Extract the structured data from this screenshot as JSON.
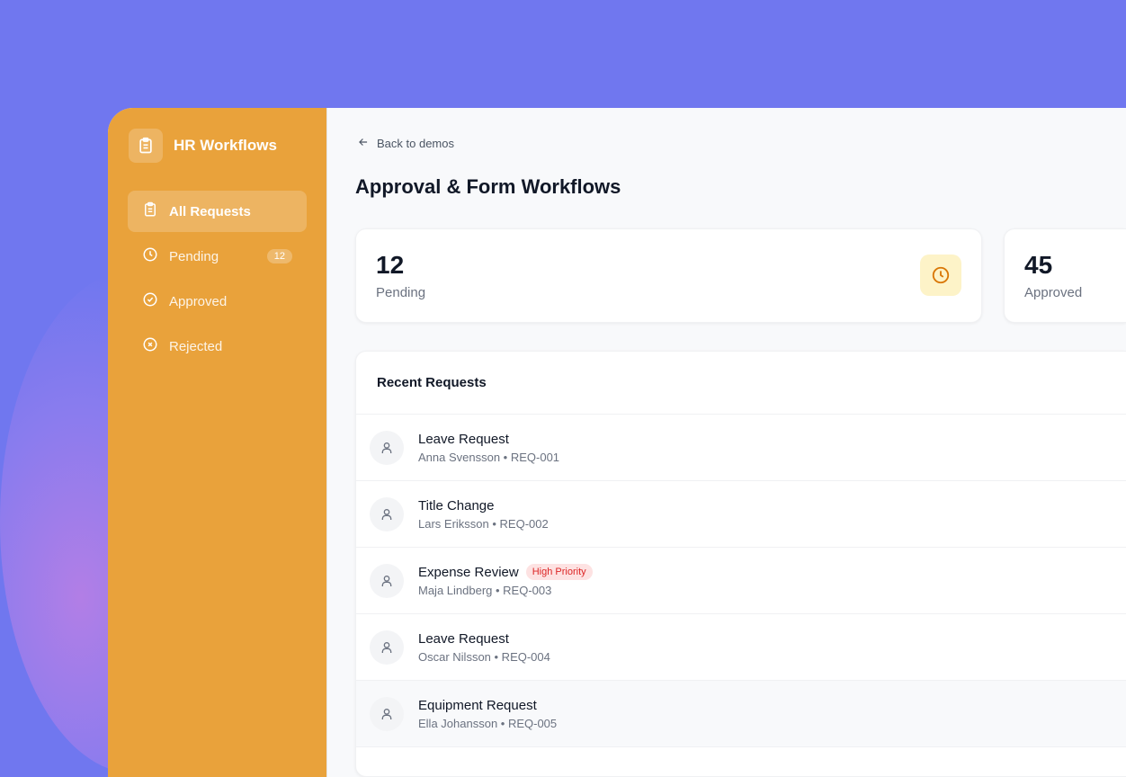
{
  "sidebar": {
    "brand": "HR Workflows",
    "brand_icon": "clipboard-icon",
    "items": [
      {
        "label": "All Requests",
        "icon": "clipboard-icon",
        "active": true
      },
      {
        "label": "Pending",
        "icon": "clock-icon",
        "badge": "12"
      },
      {
        "label": "Approved",
        "icon": "check-circle-icon"
      },
      {
        "label": "Rejected",
        "icon": "x-circle-icon"
      }
    ]
  },
  "header": {
    "back": "Back to demos",
    "title": "Approval & Form Workflows"
  },
  "stats": [
    {
      "value": "12",
      "label": "Pending",
      "icon": "clock-icon"
    },
    {
      "value": "45",
      "label": "Approved"
    }
  ],
  "list": {
    "title": "Recent Requests",
    "rows": [
      {
        "title": "Leave Request",
        "sub": "Anna Svensson • REQ-001"
      },
      {
        "title": "Title Change",
        "sub": "Lars Eriksson • REQ-002"
      },
      {
        "title": "Expense Review",
        "sub": "Maja Lindberg • REQ-003",
        "tag": "High Priority"
      },
      {
        "title": "Leave Request",
        "sub": "Oscar Nilsson • REQ-004"
      },
      {
        "title": "Equipment Request",
        "sub": "Ella Johansson • REQ-005"
      }
    ]
  },
  "colors": {
    "background": "#7077ef",
    "sidebar": "#e9a23b",
    "priority": "#dc2626"
  }
}
